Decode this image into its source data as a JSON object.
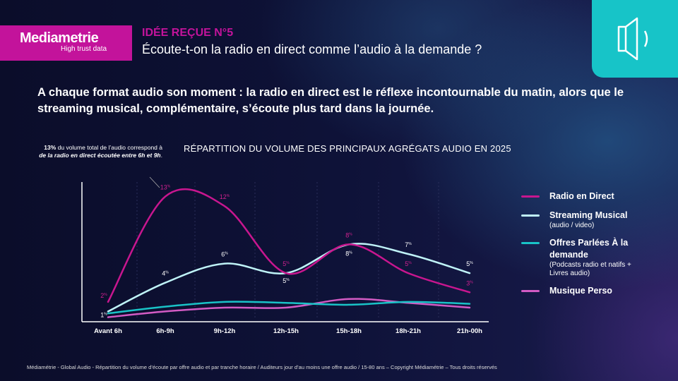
{
  "brand": {
    "name": "Mediametrie",
    "tagline": "High trust data"
  },
  "header": {
    "kicker": "IDÉE REÇUE N°5",
    "question": "Écoute-t-on la radio en direct comme l’audio à la demande ?",
    "icon": "speaker-icon"
  },
  "headline": "A chaque format audio son moment : la radio en direct est le réflexe incontournable du matin, alors que le streaming musical, complémentaire, s’écoute plus tard dans la journée.",
  "annotation": {
    "bold1": "13%",
    "text1": " du volume total de l’audio correspond à ",
    "bold2": "de la radio en direct écoutée entre 6h et 9h",
    "text2": "."
  },
  "chart_data": {
    "type": "line",
    "title": "RÉPARTITION DU VOLUME DES PRINCIPAUX AGRÉGATS AUDIO EN 2025",
    "categories": [
      "Avant 6h",
      "6h-9h",
      "9h-12h",
      "12h-15h",
      "15h-18h",
      "18h-21h",
      "21h-00h"
    ],
    "unit": "%",
    "ylim": [
      0,
      14
    ],
    "grid": "vertical dashed",
    "legend": "right",
    "series": [
      {
        "name": "Radio en Direct",
        "note": "",
        "color": "#c8168f",
        "values": [
          2,
          13,
          12,
          5,
          8,
          5,
          3
        ],
        "labeled": true
      },
      {
        "name": "Streaming Musical",
        "note": "(audio / video)",
        "color": "#bff3f7",
        "values": [
          1,
          4,
          6,
          5,
          8,
          7,
          5
        ],
        "labeled": true
      },
      {
        "name": "Offres Parlées À la demande",
        "note": "(Podcasts radio et natifs + Livres audio)",
        "color": "#19c3c7",
        "values": [
          0.8,
          1.5,
          2,
          1.9,
          1.7,
          2,
          1.8
        ],
        "labeled": false
      },
      {
        "name": "Musique Perso",
        "note": "",
        "color": "#d35bc4",
        "values": [
          0.4,
          1,
          1.4,
          1.4,
          2.3,
          1.9,
          1.4
        ],
        "labeled": false
      }
    ]
  },
  "footer": "Médiamétrie - Global Audio - Répartition du volume d’écoute par offre audio et par tranche horaire / Auditeurs jour d’au moins une offre audio / 15-80 ans – Copyright Médiamétrie – Tous droits réservés"
}
